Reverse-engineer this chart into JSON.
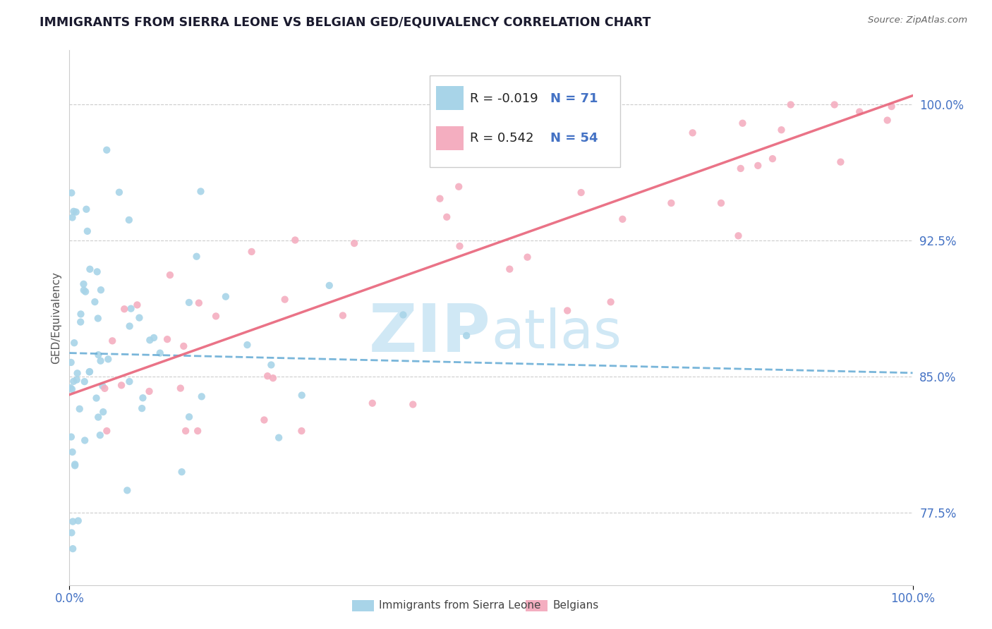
{
  "title": "IMMIGRANTS FROM SIERRA LEONE VS BELGIAN GED/EQUIVALENCY CORRELATION CHART",
  "source": "Source: ZipAtlas.com",
  "ylabel": "GED/Equivalency",
  "ytick_labels": [
    "77.5%",
    "85.0%",
    "92.5%",
    "100.0%"
  ],
  "ytick_values": [
    0.775,
    0.85,
    0.925,
    1.0
  ],
  "xrange": [
    0.0,
    1.0
  ],
  "yrange": [
    0.735,
    1.03
  ],
  "legend_entries": [
    {
      "label": "Immigrants from Sierra Leone",
      "color": "#a8d4e8",
      "R": "-0.019",
      "N": "71"
    },
    {
      "label": "Belgians",
      "color": "#f4aec0",
      "R": "0.542",
      "N": "54"
    }
  ],
  "scatter_color_sl": "#a8d4e8",
  "scatter_color_be": "#f4aec0",
  "line_color_sl": "#6baed6",
  "line_color_be": "#e8647a",
  "watermark_color": "#d0e8f5",
  "background_color": "#ffffff",
  "grid_color": "#cccccc",
  "title_color": "#1a1a2e",
  "source_color": "#666666",
  "tick_color": "#4472c4",
  "ylabel_color": "#555555",
  "sl_trend_x0": 0.0,
  "sl_trend_x1": 1.0,
  "sl_trend_y0": 0.863,
  "sl_trend_y1": 0.852,
  "be_trend_x0": 0.0,
  "be_trend_x1": 1.0,
  "be_trend_y0": 0.84,
  "be_trend_y1": 1.005
}
